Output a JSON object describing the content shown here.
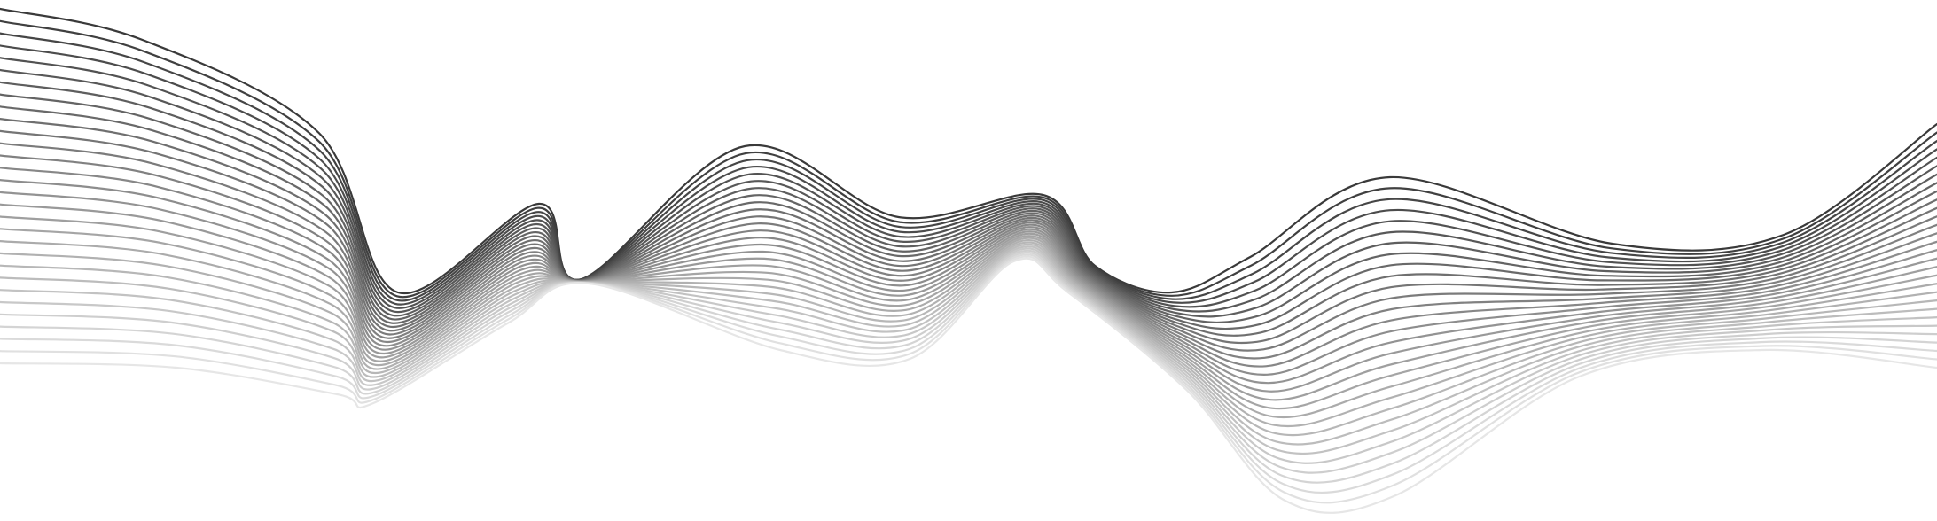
{
  "artwork": {
    "background_color": "#ffffff",
    "stroke_color_dark": "#3a3a3a",
    "stroke_color_light": "#e6e6e6",
    "line_count": 30,
    "style": "abstract flowing wave lines"
  }
}
